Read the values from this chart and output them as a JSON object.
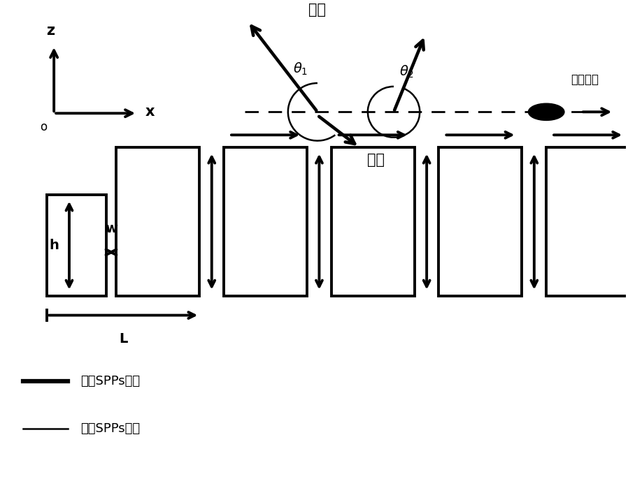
{
  "bg_color": "#ffffff",
  "line_color": "#000000",
  "fig_width": 8.98,
  "fig_height": 6.99,
  "legend_line1": "常规SPPs模式",
  "legend_line2": "腔体SPPs模式",
  "label_radiation1": "辐射",
  "label_radiation2": "辐射",
  "label_moving_electron": "运动电子",
  "label_z": "z",
  "label_x": "x",
  "label_o": "o",
  "label_h": "h",
  "label_w": "w",
  "label_L": "L"
}
